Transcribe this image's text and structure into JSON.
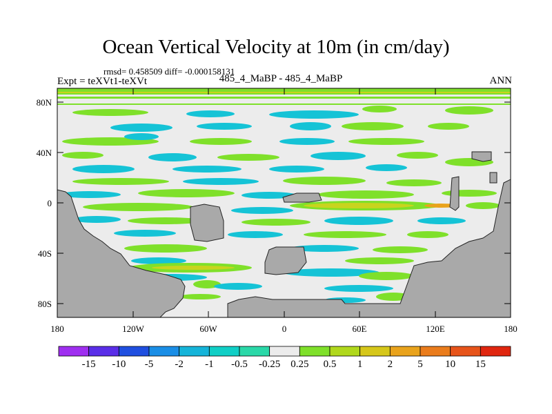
{
  "title": "Ocean Vertical Velocity at 10m (in cm/day)",
  "stats_line": "rmsd= 0.458509 diff= -0.000158131",
  "experiment": "Expt = teXVt1-teXVt",
  "case_diff": "485_4_MaBP - 485_4_MaBP",
  "season": "ANN",
  "axes": {
    "lat_labels": [
      "80N",
      "40N",
      "0",
      "40S",
      "80S"
    ],
    "lon_labels": [
      "180",
      "120W",
      "60W",
      "0",
      "60E",
      "120E",
      "180"
    ]
  },
  "colorbar": {
    "colors": [
      "#9f2ff0",
      "#5a2ee8",
      "#1f4fe0",
      "#1a8ee6",
      "#15b4d9",
      "#10cfc6",
      "#2ad8a8",
      "#ececec",
      "#7fe02a",
      "#b0d81c",
      "#d6c71a",
      "#e9a31c",
      "#ea7c1c",
      "#e7541a",
      "#e0260f"
    ],
    "labels": [
      "-15",
      "-10",
      "-5",
      "-2",
      "-1",
      "-0.5",
      "-0.25",
      "0.25",
      "0.5",
      "1",
      "2",
      "5",
      "10",
      "15"
    ]
  },
  "colors": {
    "land": "#a9a9a9",
    "neutral": "#ececec",
    "positive_green": "#7fe02a",
    "positive_yellow": "#c8d41e",
    "negative_cyan": "#15c3d6",
    "negative_blue": "#1a8ee6",
    "positive_orange": "#e9a31c"
  }
}
